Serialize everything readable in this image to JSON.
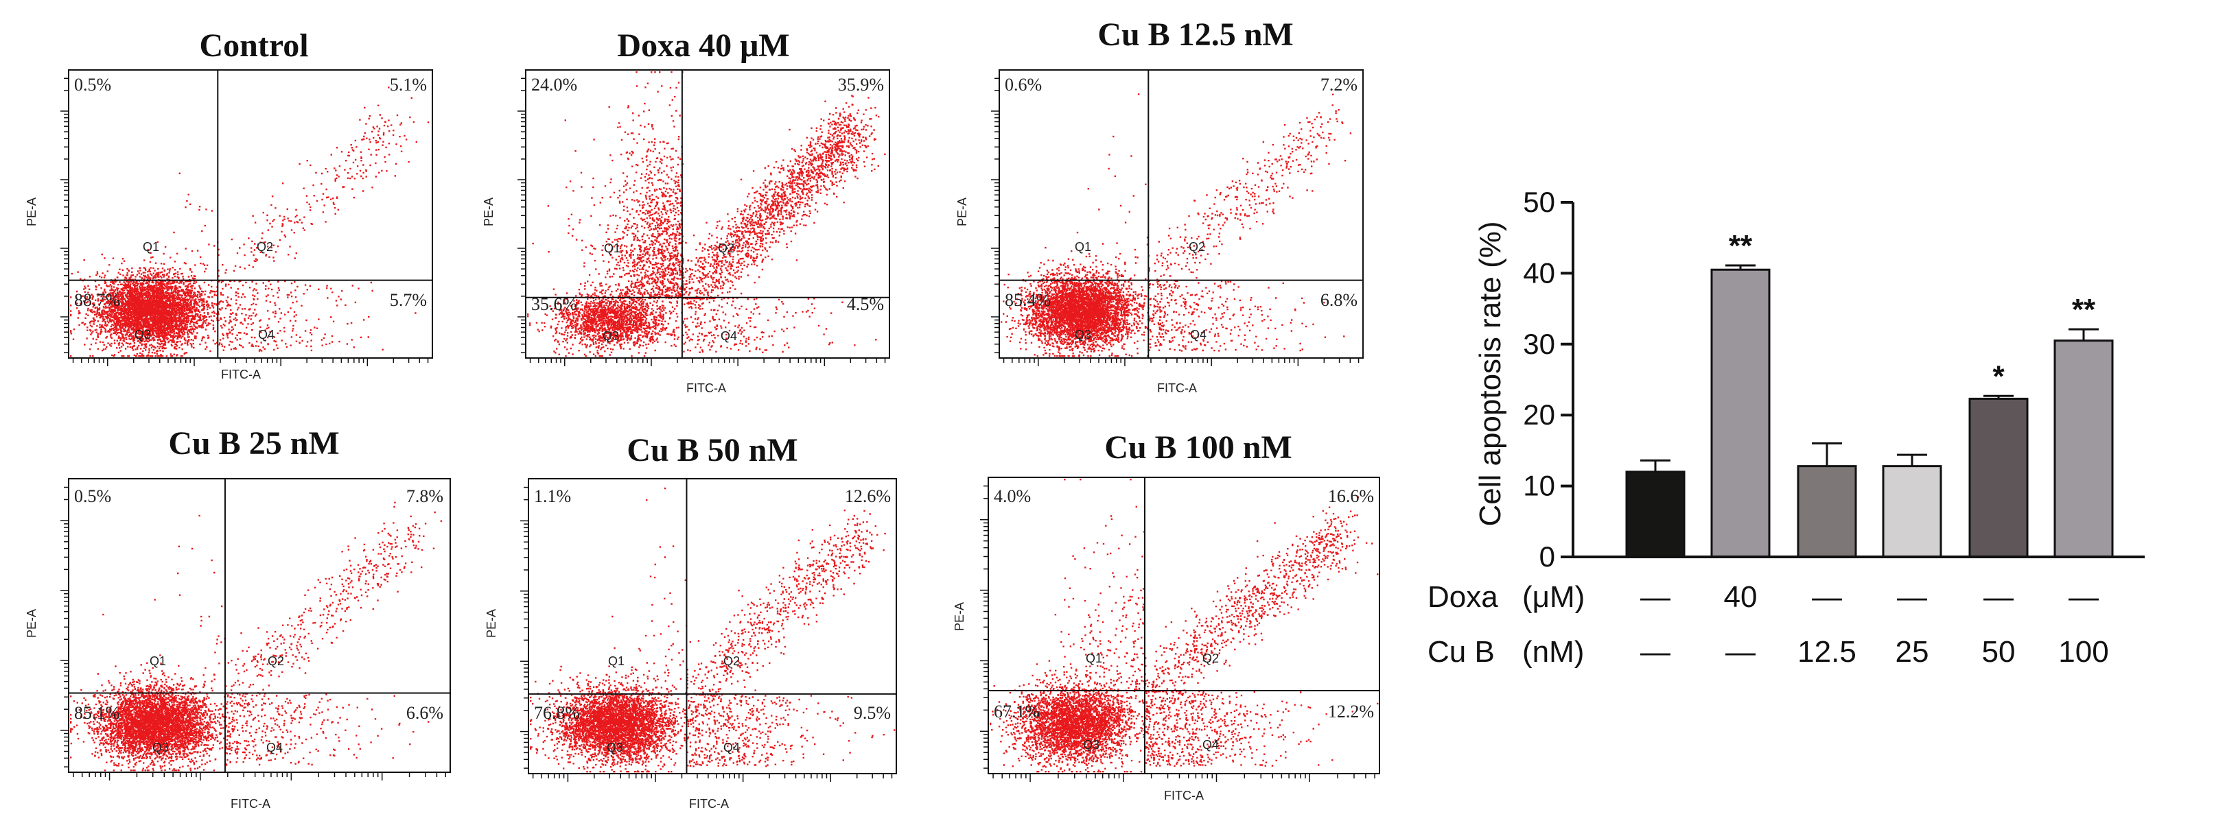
{
  "chart_data": [
    {
      "type": "scatter",
      "title": "Control",
      "xlabel": "FITC-A",
      "ylabel": "PE-A",
      "quadrants": {
        "Q1": "0.5%",
        "Q2": "5.1%",
        "Q3": "88.7%",
        "Q4": "5.7%"
      },
      "quadrant_names": [
        "Q1",
        "Q2",
        "Q3",
        "Q4"
      ]
    },
    {
      "type": "scatter",
      "title": "Doxa 40 μM",
      "xlabel": "FITC-A",
      "ylabel": "PE-A",
      "quadrants": {
        "Q1": "24.0%",
        "Q2": "35.9%",
        "Q3": "35.6%",
        "Q4": "4.5%"
      },
      "quadrant_names": [
        "Q1",
        "Q2",
        "Q3",
        "Q4"
      ]
    },
    {
      "type": "scatter",
      "title": "Cu B 12.5 nM",
      "xlabel": "FITC-A",
      "ylabel": "PE-A",
      "quadrants": {
        "Q1": "0.6%",
        "Q2": "7.2%",
        "Q3": "85.4%",
        "Q4": "6.8%"
      },
      "quadrant_names": [
        "Q1",
        "Q2",
        "Q3",
        "Q4"
      ]
    },
    {
      "type": "scatter",
      "title": "Cu B 25 nM",
      "xlabel": "FITC-A",
      "ylabel": "PE-A",
      "quadrants": {
        "Q1": "0.5%",
        "Q2": "7.8%",
        "Q3": "85.1%",
        "Q4": "6.6%"
      },
      "quadrant_names": [
        "Q1",
        "Q2",
        "Q3",
        "Q4"
      ]
    },
    {
      "type": "scatter",
      "title": "Cu B 50 nM",
      "xlabel": "FITC-A",
      "ylabel": "PE-A",
      "quadrants": {
        "Q1": "1.1%",
        "Q2": "12.6%",
        "Q3": "76.8%",
        "Q4": "9.5%"
      },
      "quadrant_names": [
        "Q1",
        "Q2",
        "Q3",
        "Q4"
      ]
    },
    {
      "type": "scatter",
      "title": "Cu B 100 nM",
      "xlabel": "FITC-A",
      "ylabel": "PE-A",
      "quadrants": {
        "Q1": "4.0%",
        "Q2": "16.6%",
        "Q3": "67.1%",
        "Q4": "12.2%"
      },
      "quadrant_names": [
        "Q1",
        "Q2",
        "Q3",
        "Q4"
      ]
    },
    {
      "type": "bar",
      "ylabel": "Cell apoptosis rate (%)",
      "ylim": [
        0,
        50
      ],
      "yticks": [
        0,
        10,
        20,
        30,
        40,
        50
      ],
      "values": [
        12.0,
        40.5,
        12.8,
        12.8,
        22.3,
        30.5
      ],
      "errors": [
        1.6,
        0.6,
        3.2,
        1.6,
        0.4,
        1.6
      ],
      "significance": [
        "",
        "**",
        "",
        "",
        "*",
        "**"
      ],
      "colors": [
        "#161615",
        "#9a969b",
        "#7e7778",
        "#d2d0d0",
        "#5e5658",
        "#9e999f"
      ],
      "conditions": [
        {
          "label": "Doxa",
          "unit": "(μM)",
          "values": [
            "—",
            "40",
            "—",
            "—",
            "—",
            "—"
          ]
        },
        {
          "label": "Cu B",
          "unit": "(nM)",
          "values": [
            "—",
            "—",
            "12.5",
            "25",
            "50",
            "100"
          ]
        }
      ]
    }
  ],
  "colors": {
    "dots": "#e8191c",
    "axis": "#111111"
  }
}
